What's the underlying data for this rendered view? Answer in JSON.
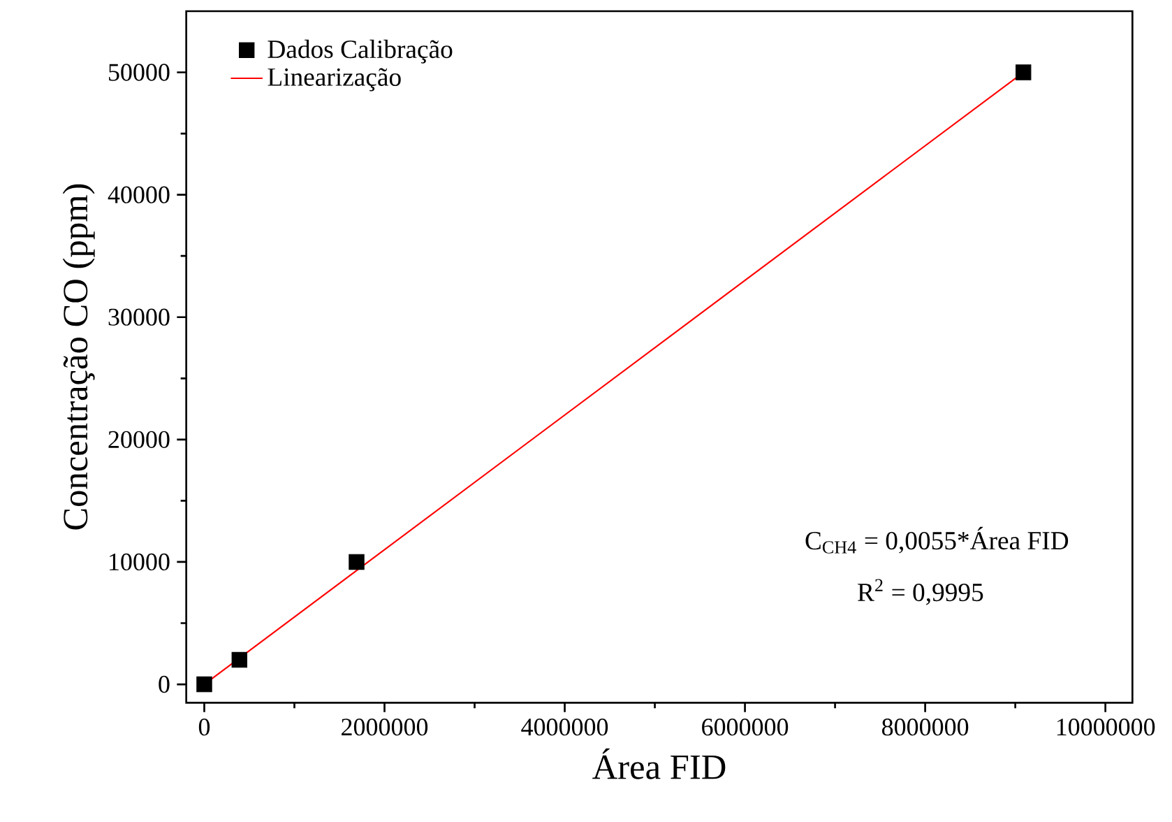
{
  "chart_data": {
    "type": "scatter",
    "xlabel": "Área FID",
    "ylabel": "Concentração CO (ppm)",
    "xlim": [
      -200000,
      10300000
    ],
    "ylim": [
      -1500,
      55000
    ],
    "xticks": [
      0,
      2000000,
      4000000,
      6000000,
      8000000,
      10000000
    ],
    "yticks": [
      0,
      10000,
      20000,
      30000,
      40000,
      50000
    ],
    "legend": "top left",
    "grid": false,
    "series": [
      {
        "name": "Dados Calibração",
        "marker": "square",
        "color": "#000000",
        "x": [
          0,
          390000,
          1690000,
          9090000
        ],
        "values": [
          0,
          2000,
          10000,
          50000
        ]
      },
      {
        "name": "Linearização",
        "type": "line",
        "color": "#ff0000",
        "x": [
          0,
          9090000
        ],
        "values": [
          0,
          50000
        ]
      }
    ],
    "annotations": [
      "C$_{CH4}$ = 0,0055*Área FID",
      "R$^{2}$ = 0,9995"
    ]
  }
}
